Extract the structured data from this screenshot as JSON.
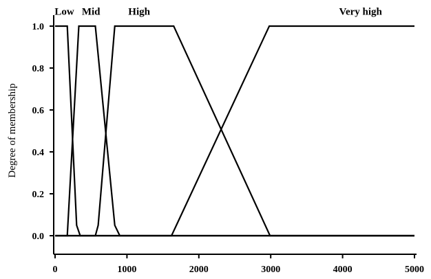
{
  "chart_data": {
    "type": "line",
    "xlabel": "",
    "ylabel": "Degree of membership",
    "xlim": [
      0,
      5000
    ],
    "ylim": [
      0,
      1
    ],
    "xticks": [
      "0",
      "1000",
      "2000",
      "3000",
      "4000",
      "5000"
    ],
    "yticks": [
      "0.0",
      "0.2",
      "0.4",
      "0.6",
      "0.8",
      "1.0"
    ],
    "grid": false,
    "legend": "none",
    "series": [
      {
        "name": "Low",
        "x": [
          0,
          170,
          300,
          350,
          5000
        ],
        "y": [
          1,
          1,
          0.05,
          0,
          0
        ]
      },
      {
        "name": "Mid",
        "x": [
          0,
          170,
          330,
          560,
          830,
          900,
          5000
        ],
        "y": [
          0,
          0,
          1,
          1,
          0.05,
          0,
          0
        ]
      },
      {
        "name": "High",
        "x": [
          0,
          560,
          600,
          830,
          1650,
          2990,
          5000
        ],
        "y": [
          0,
          0,
          0.05,
          1,
          1,
          0,
          0
        ]
      },
      {
        "name": "Very high",
        "x": [
          0,
          1620,
          2980,
          5000
        ],
        "y": [
          0,
          0,
          1,
          1
        ]
      }
    ],
    "series_labels": [
      {
        "text": "Low",
        "x": 130,
        "y": 1.06
      },
      {
        "text": "Mid",
        "x": 500,
        "y": 1.06
      },
      {
        "text": "High",
        "x": 1170,
        "y": 1.06
      },
      {
        "text": "Very high",
        "x": 4250,
        "y": 1.06
      }
    ]
  }
}
